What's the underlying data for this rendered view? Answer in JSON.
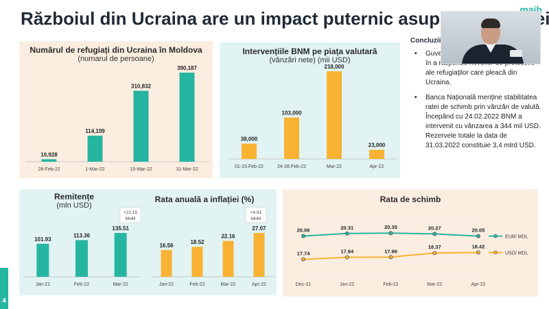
{
  "slide": {
    "title": "Războiul din Ucraina are un impact puternic asupra economiei",
    "logo": "maib",
    "number": "4"
  },
  "conclusions": {
    "title": "Concluzii",
    "items": [
      {
        "bullet": "•",
        "text": "Guvernul a dat dovadă de leadership în a răspunde nevoilor de protective ale refugiaților care pleacă din Ucraina."
      },
      {
        "bullet": "•",
        "text": "Banca Națională menține stabilitatea ratei de schimb prin vânzări de valută. Începând cu 24.02.2022 BNM a intervenit cu vânzarea a 344 mil USD. Rezervele totale la data de 31.03.2022 constituie 3,4 mlrd USD."
      }
    ]
  },
  "colors": {
    "teal": "#26b5a1",
    "orange": "#f9b233",
    "peach_bg": "#fbeee0",
    "mint_bg": "#e1f3f3"
  },
  "chart_data": [
    {
      "id": "refugees",
      "type": "bar",
      "title": "Numărul de refugiați din Ucraina în Moldova",
      "subtitle": "(numarul de persoane)",
      "categories": [
        "28-Feb-22",
        "1-Mar-22",
        "15-Mar-22",
        "31-Mar-22"
      ],
      "values": [
        10928,
        114109,
        310832,
        390187
      ],
      "value_labels": [
        "10,928",
        "114,109",
        "310,832",
        "390,187"
      ],
      "color": "#26b5a1"
    },
    {
      "id": "bnm_interventions",
      "type": "bar",
      "title": "Intervențiile BNM pe piața valutară",
      "subtitle": "(vânzări nete) (mii USD)",
      "categories": [
        "01-23.Feb-22",
        "24-28.Feb-22",
        "Mar-22",
        "Apr-22"
      ],
      "values": [
        38000,
        103000,
        218000,
        23000
      ],
      "value_labels": [
        "38,000",
        "103,000",
        "218,000",
        "23,000"
      ],
      "color": "#f9b233"
    },
    {
      "id": "remittances",
      "type": "bar",
      "title": "Remitențe",
      "subtitle": "(mln USD)",
      "categories": [
        "Jan-21",
        "Feb-22",
        "Mar-22"
      ],
      "values": [
        101.93,
        113.36,
        135.51
      ],
      "value_labels": [
        "101.93",
        "113.36",
        "135.51"
      ],
      "annotation": "+22.15 MoM",
      "color": "#26b5a1"
    },
    {
      "id": "inflation",
      "type": "bar",
      "title": "Rata anuală a inflației (%)",
      "categories": [
        "Jan-22",
        "Feb-22",
        "Mar-22",
        "Apr-22"
      ],
      "values": [
        16.56,
        18.52,
        22.16,
        27.07
      ],
      "value_labels": [
        "16.56",
        "18.52",
        "22.16",
        "27.07"
      ],
      "annotation": "+4.91 MoM",
      "color": "#f9b233"
    },
    {
      "id": "exchange_rate",
      "type": "line",
      "title": "Rata de schimb",
      "categories": [
        "Dec-21",
        "Jan-22",
        "Feb-22",
        "Mar-22",
        "Apr-22"
      ],
      "series": [
        {
          "name": "EUR/ MDL",
          "values": [
            20.06,
            20.31,
            20.35,
            20.27,
            20.05
          ],
          "value_labels": [
            "20.06",
            "20.31",
            "20.35",
            "20.27",
            "20.05"
          ],
          "color": "#26b5a1"
        },
        {
          "name": "USD/ MDL",
          "values": [
            17.74,
            17.94,
            17.96,
            18.37,
            18.42
          ],
          "value_labels": [
            "17.74",
            "17.94",
            "17.96",
            "18.37",
            "18.42"
          ],
          "color": "#f9b233"
        }
      ],
      "grid": true,
      "legend": "right"
    }
  ]
}
